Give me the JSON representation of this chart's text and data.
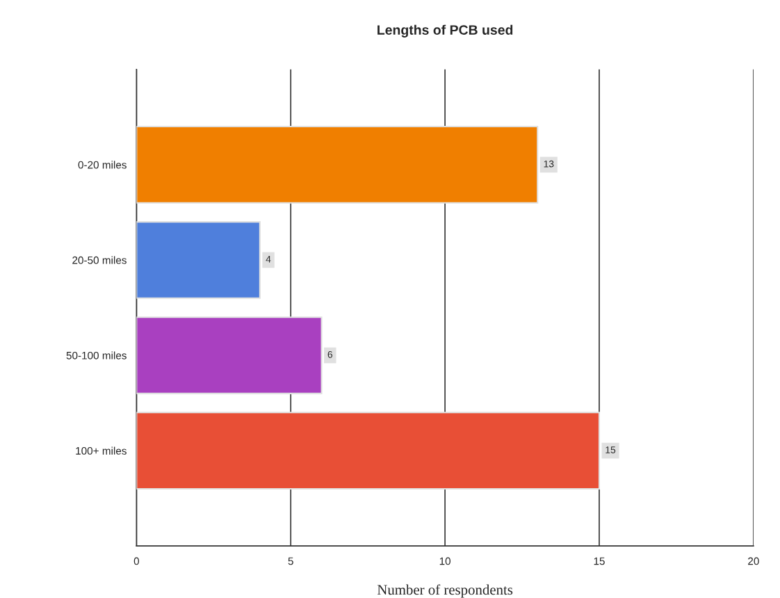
{
  "chart_data": {
    "type": "bar",
    "orientation": "horizontal",
    "title": "Lengths of PCB used",
    "xlabel": "Number of respondents",
    "categories": [
      "0-20 miles",
      "20-50 miles",
      "50-100 miles",
      "100+ miles"
    ],
    "values": [
      13,
      4,
      6,
      15
    ],
    "colors": [
      "#f07f00",
      "#4f7fdc",
      "#a940c0",
      "#e84f36"
    ],
    "xlim": [
      0,
      20
    ],
    "xticks": [
      0,
      5,
      10,
      15,
      20
    ],
    "grid": "x",
    "data_labels": true
  }
}
